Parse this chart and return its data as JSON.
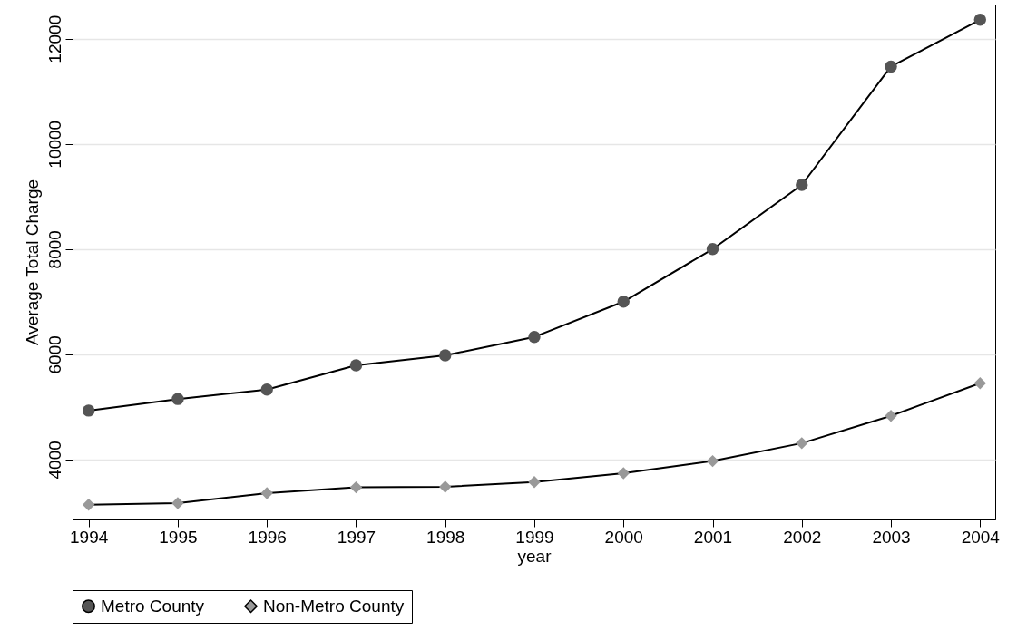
{
  "chart_data": {
    "type": "line",
    "xlabel": "year",
    "ylabel": "Average Total Charge",
    "x": [
      1994,
      1995,
      1996,
      1997,
      1998,
      1999,
      2000,
      2001,
      2002,
      2003,
      2004
    ],
    "series": [
      {
        "name": "Metro County",
        "color": "#555555",
        "marker": "circle",
        "values": [
          4930,
          5150,
          5330,
          5790,
          5980,
          6330,
          7000,
          8000,
          9220,
          11470,
          12360
        ]
      },
      {
        "name": "Non-Metro County",
        "color": "#999999",
        "marker": "diamond",
        "values": [
          3140,
          3170,
          3360,
          3470,
          3480,
          3570,
          3740,
          3970,
          4310,
          4830,
          5450
        ]
      }
    ],
    "xlim": [
      1993.82,
      2004.17
    ],
    "xticks": [
      1994,
      1995,
      1996,
      1997,
      1998,
      1999,
      2000,
      2001,
      2002,
      2003,
      2004
    ],
    "ylim": [
      2860,
      12650
    ],
    "yticks": [
      4000,
      6000,
      8000,
      10000,
      12000
    ],
    "grid": "y",
    "legend": "bottom",
    "line_style": "solid"
  }
}
